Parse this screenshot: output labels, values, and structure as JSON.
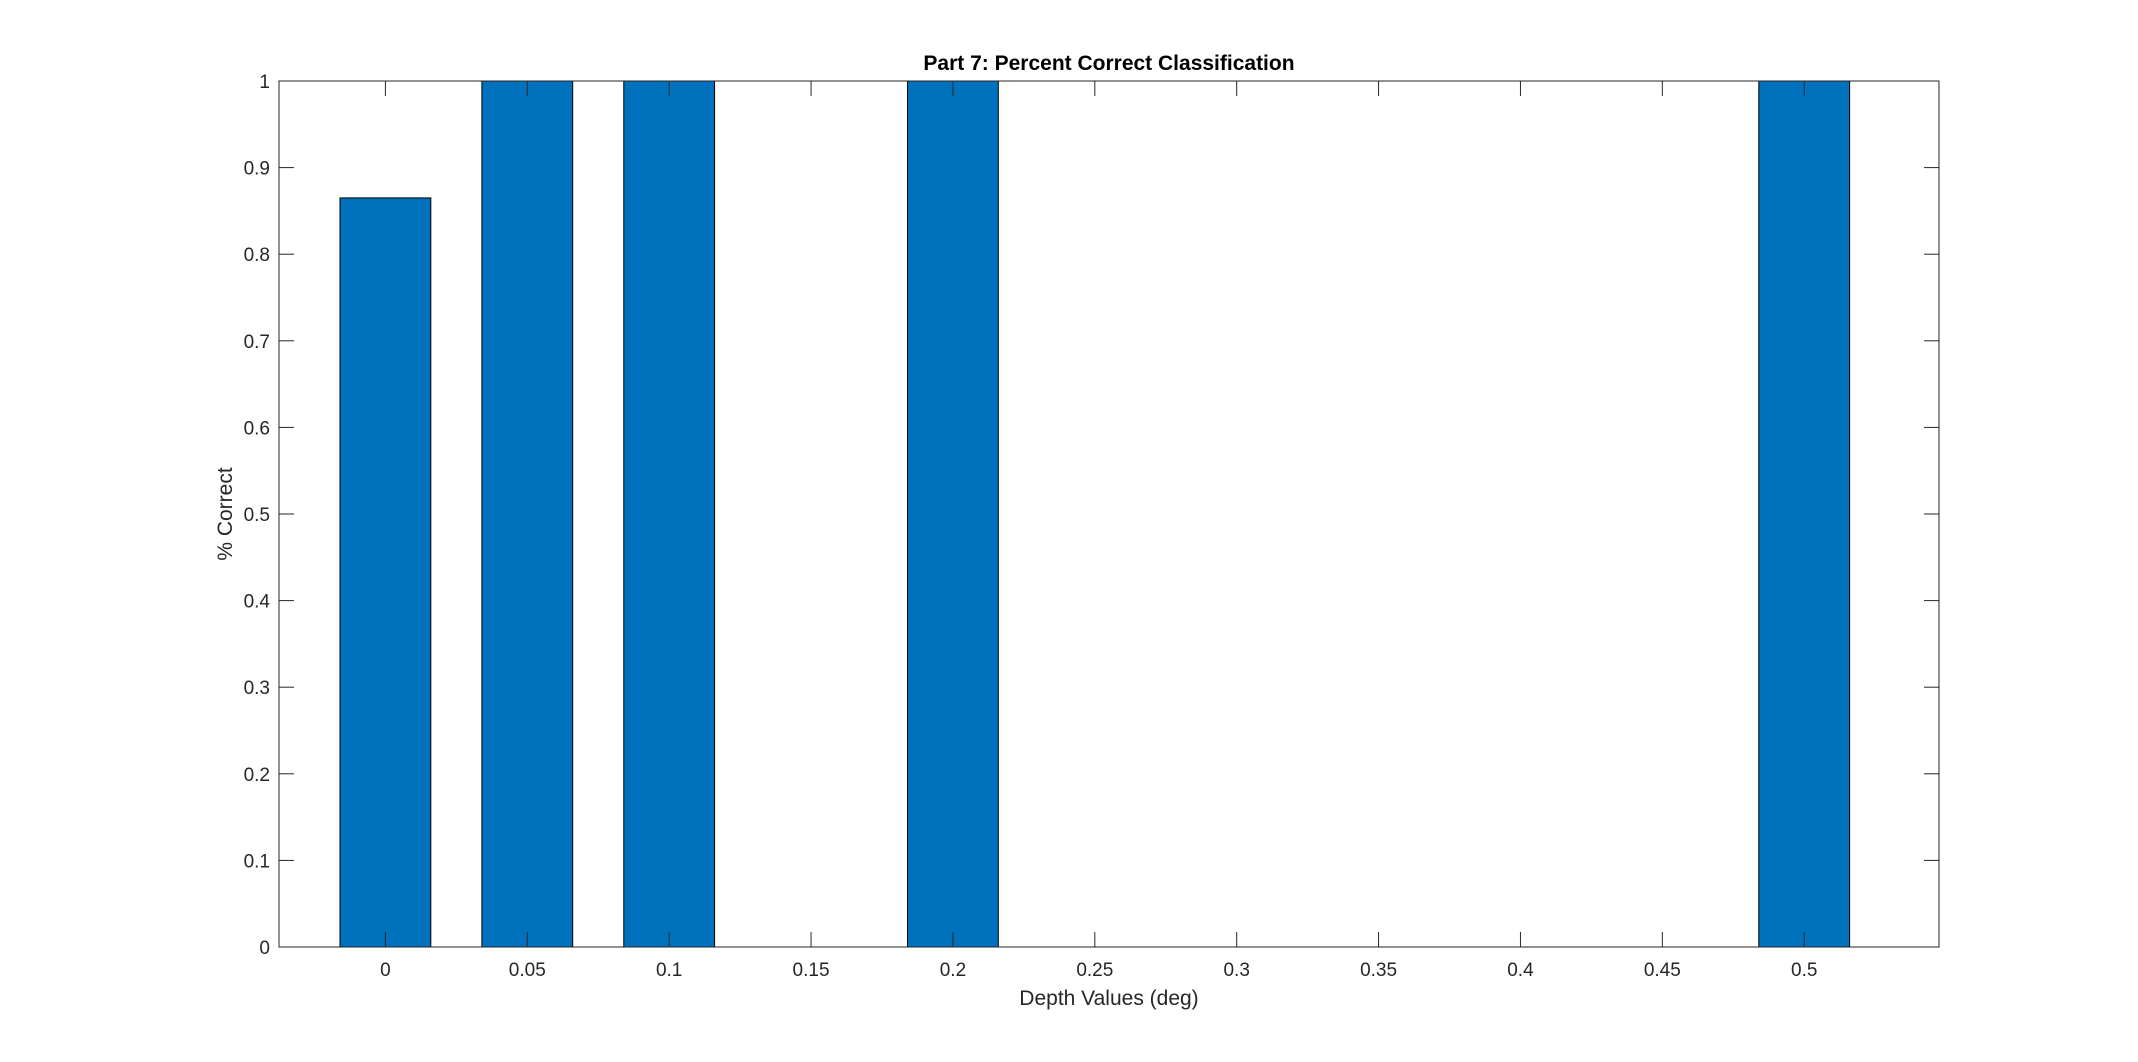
{
  "chart_data": {
    "type": "bar",
    "title": "Part 7: Percent Correct Classification",
    "xlabel": "Depth Values (deg)",
    "ylabel": "% Correct",
    "x": [
      0,
      0.05,
      0.1,
      0.2,
      0.5
    ],
    "values": [
      0.865,
      1,
      1,
      1,
      1
    ],
    "bar_width": 0.032,
    "xlim": [
      -0.0375,
      0.5475
    ],
    "ylim": [
      0,
      1
    ],
    "xticks": [
      0,
      0.05,
      0.1,
      0.15,
      0.2,
      0.25,
      0.3,
      0.35,
      0.4,
      0.45,
      0.5
    ],
    "xtick_labels": [
      "0",
      "0.05",
      "0.1",
      "0.15",
      "0.2",
      "0.25",
      "0.3",
      "0.35",
      "0.4",
      "0.45",
      "0.5"
    ],
    "yticks": [
      0,
      0.1,
      0.2,
      0.3,
      0.4,
      0.5,
      0.6,
      0.7,
      0.8,
      0.9,
      1
    ],
    "ytick_labels": [
      "0",
      "0.1",
      "0.2",
      "0.3",
      "0.4",
      "0.5",
      "0.6",
      "0.7",
      "0.8",
      "0.9",
      "1"
    ],
    "grid": false,
    "legend": "none",
    "bar_color": "#0072BD",
    "bar_edge_color": "#000000",
    "axes_color": "#262626"
  }
}
